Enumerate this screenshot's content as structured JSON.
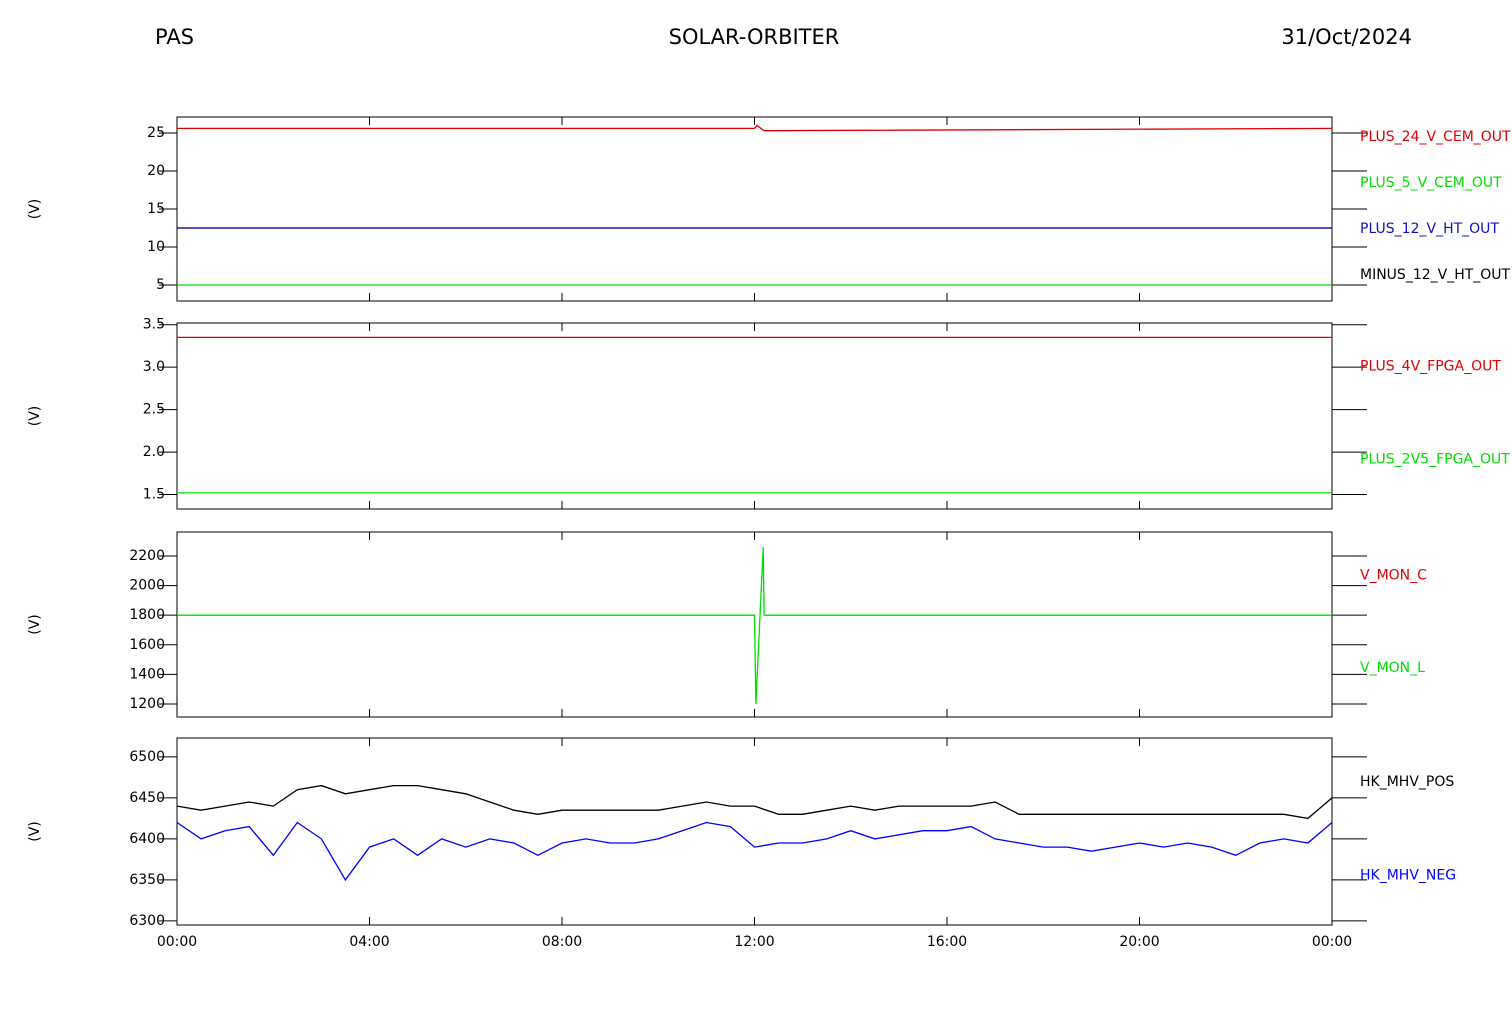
{
  "header": {
    "left": "PAS",
    "center": "SOLAR-ORBITER",
    "right": "31/Oct/2024"
  },
  "chart_data": [
    {
      "type": "line",
      "ylabel": "(V)",
      "xlim": [
        0,
        24
      ],
      "ylim": [
        2.9,
        27.1
      ],
      "yticks": [
        5,
        10,
        15,
        20,
        25
      ],
      "x": [
        0,
        12,
        12.05,
        12.2,
        24
      ],
      "series": [
        {
          "name": "PLUS_24_V_CEM_OUT",
          "color": "#e00000",
          "values": [
            25.6,
            25.6,
            26.0,
            25.3,
            25.6
          ]
        },
        {
          "name": "PLUS_5_V_CEM_OUT",
          "color": "#00dd00",
          "values": [
            5,
            5,
            5,
            5,
            5
          ]
        },
        {
          "name": "PLUS_12_V_HT_OUT",
          "color": "#1010c0",
          "values": [
            12.5,
            12.5,
            12.5,
            12.5,
            12.5
          ]
        },
        {
          "name": "MINUS_12_V_HT_OUT",
          "color": "#000000",
          "values": [
            12.5,
            12.5,
            12.5,
            12.5,
            12.5
          ]
        }
      ]
    },
    {
      "type": "line",
      "ylabel": "(V)",
      "xlim": [
        0,
        24
      ],
      "ylim": [
        1.33,
        3.52
      ],
      "yticks": [
        1.5,
        {
          "value": 2,
          "label": "2.0"
        },
        2.5,
        {
          "value": 3,
          "label": "3.0"
        },
        3.5
      ],
      "x": [
        0,
        24
      ],
      "series": [
        {
          "name": "PLUS_4V_FPGA_OUT",
          "color": "#e00000",
          "values": [
            3.35,
            3.35
          ]
        },
        {
          "name": "PLUS_2V5_FPGA_OUT",
          "color": "#00dd00",
          "values": [
            1.52,
            1.52
          ]
        }
      ]
    },
    {
      "type": "line",
      "ylabel": "(V)",
      "xlim": [
        0,
        24
      ],
      "ylim": [
        1112,
        2362
      ],
      "yticks": [
        1200,
        1400,
        1600,
        1800,
        2000,
        2200
      ],
      "x": [
        0,
        12,
        12.03,
        12.18,
        12.2,
        24
      ],
      "series": [
        {
          "name": "V_MON_C",
          "color": "#e00000",
          "values": [
            null,
            null,
            null,
            null,
            null,
            null
          ]
        },
        {
          "name": "V_MON_L",
          "color": "#00dd00",
          "values": [
            1800,
            1800,
            1200,
            2260,
            1800,
            1800
          ]
        }
      ]
    },
    {
      "type": "line",
      "ylabel": "(V)",
      "xlim": [
        0,
        24
      ],
      "ylim": [
        6295,
        6523
      ],
      "yticks": [
        6300,
        6350,
        6400,
        6450,
        6500
      ],
      "xticks": [
        {
          "value": 0,
          "label": "00:00"
        },
        {
          "value": 4,
          "label": "04:00"
        },
        {
          "value": 8,
          "label": "08:00"
        },
        {
          "value": 12,
          "label": "12:00"
        },
        {
          "value": 16,
          "label": "16:00"
        },
        {
          "value": 20,
          "label": "20:00"
        },
        {
          "value": 24,
          "label": "00:00"
        }
      ],
      "x": [
        0,
        0.5,
        1,
        1.5,
        2,
        2.5,
        3,
        3.5,
        4,
        4.5,
        5,
        5.5,
        6,
        6.5,
        7,
        7.5,
        8,
        8.5,
        9,
        9.5,
        10,
        10.5,
        11,
        11.5,
        12,
        12.5,
        13,
        13.5,
        14,
        14.5,
        15,
        15.5,
        16,
        16.5,
        17,
        17.5,
        18,
        18.5,
        19,
        19.5,
        20,
        20.5,
        21,
        21.5,
        22,
        22.5,
        23,
        23.5,
        24
      ],
      "series": [
        {
          "name": "HK_MHV_POS",
          "color": "#000000",
          "values": [
            6440,
            6435,
            6440,
            6445,
            6440,
            6460,
            6465,
            6455,
            6460,
            6465,
            6465,
            6460,
            6455,
            6445,
            6435,
            6430,
            6435,
            6435,
            6435,
            6435,
            6435,
            6440,
            6445,
            6440,
            6440,
            6430,
            6430,
            6435,
            6440,
            6435,
            6440,
            6440,
            6440,
            6440,
            6445,
            6430,
            6430,
            6430,
            6430,
            6430,
            6430,
            6430,
            6430,
            6430,
            6430,
            6430,
            6430,
            6425,
            6450
          ]
        },
        {
          "name": "HK_MHV_NEG",
          "color": "#0000ff",
          "values": [
            6420,
            6400,
            6410,
            6415,
            6380,
            6420,
            6400,
            6350,
            6390,
            6400,
            6380,
            6400,
            6390,
            6400,
            6395,
            6380,
            6395,
            6400,
            6395,
            6395,
            6400,
            6410,
            6420,
            6415,
            6390,
            6395,
            6395,
            6400,
            6410,
            6400,
            6405,
            6410,
            6410,
            6415,
            6400,
            6395,
            6390,
            6390,
            6385,
            6390,
            6395,
            6390,
            6395,
            6390,
            6380,
            6395,
            6400,
            6395,
            6420
          ]
        }
      ]
    }
  ]
}
